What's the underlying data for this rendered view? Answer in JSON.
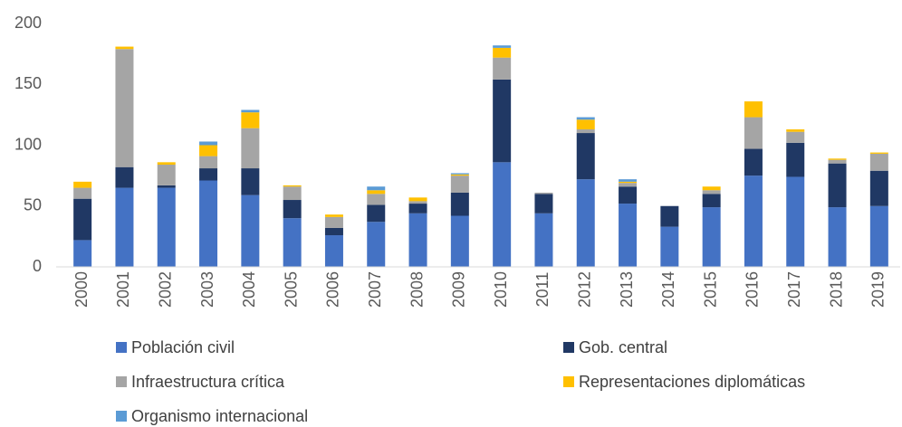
{
  "chart_data": {
    "type": "stacked_bar",
    "categories": [
      "2000",
      "2001",
      "2002",
      "2003",
      "2004",
      "2005",
      "2006",
      "2007",
      "2008",
      "2009",
      "2010",
      "2011",
      "2012",
      "2013",
      "2014",
      "2015",
      "2016",
      "2017",
      "2018",
      "2019"
    ],
    "series": [
      {
        "name": "Población civil",
        "color": "#4472c4",
        "values": [
          22,
          65,
          65,
          71,
          59,
          40,
          26,
          37,
          44,
          42,
          86,
          44,
          72,
          52,
          33,
          49,
          75,
          74,
          49,
          50
        ]
      },
      {
        "name": "Gob. central",
        "color": "#203864",
        "values": [
          34,
          17,
          2,
          10,
          22,
          15,
          6,
          14,
          8,
          19,
          68,
          16,
          38,
          14,
          17,
          11,
          22,
          28,
          36,
          29
        ]
      },
      {
        "name": "Infraestructura crítica",
        "color": "#a5a5a5",
        "values": [
          9,
          97,
          17,
          10,
          33,
          11,
          9,
          9,
          2,
          14,
          18,
          1,
          3,
          3,
          0,
          3,
          26,
          9,
          3,
          14
        ]
      },
      {
        "name": "Representaciones diplomáticas",
        "color": "#ffc000",
        "values": [
          5,
          2,
          2,
          9,
          13,
          1,
          2,
          3,
          3,
          1,
          8,
          0,
          8,
          1,
          0,
          3,
          13,
          2,
          1,
          1
        ]
      },
      {
        "name": "Organismo internacional",
        "color": "#5b9bd5",
        "values": [
          0,
          0,
          0,
          3,
          2,
          0,
          0,
          3,
          0,
          1,
          2,
          0,
          2,
          2,
          0,
          0,
          0,
          0,
          0,
          0
        ]
      }
    ],
    "ylim": [
      0,
      200
    ],
    "yticks": [
      0,
      50,
      100,
      150,
      200
    ],
    "grid": false,
    "legend": "bottom"
  }
}
